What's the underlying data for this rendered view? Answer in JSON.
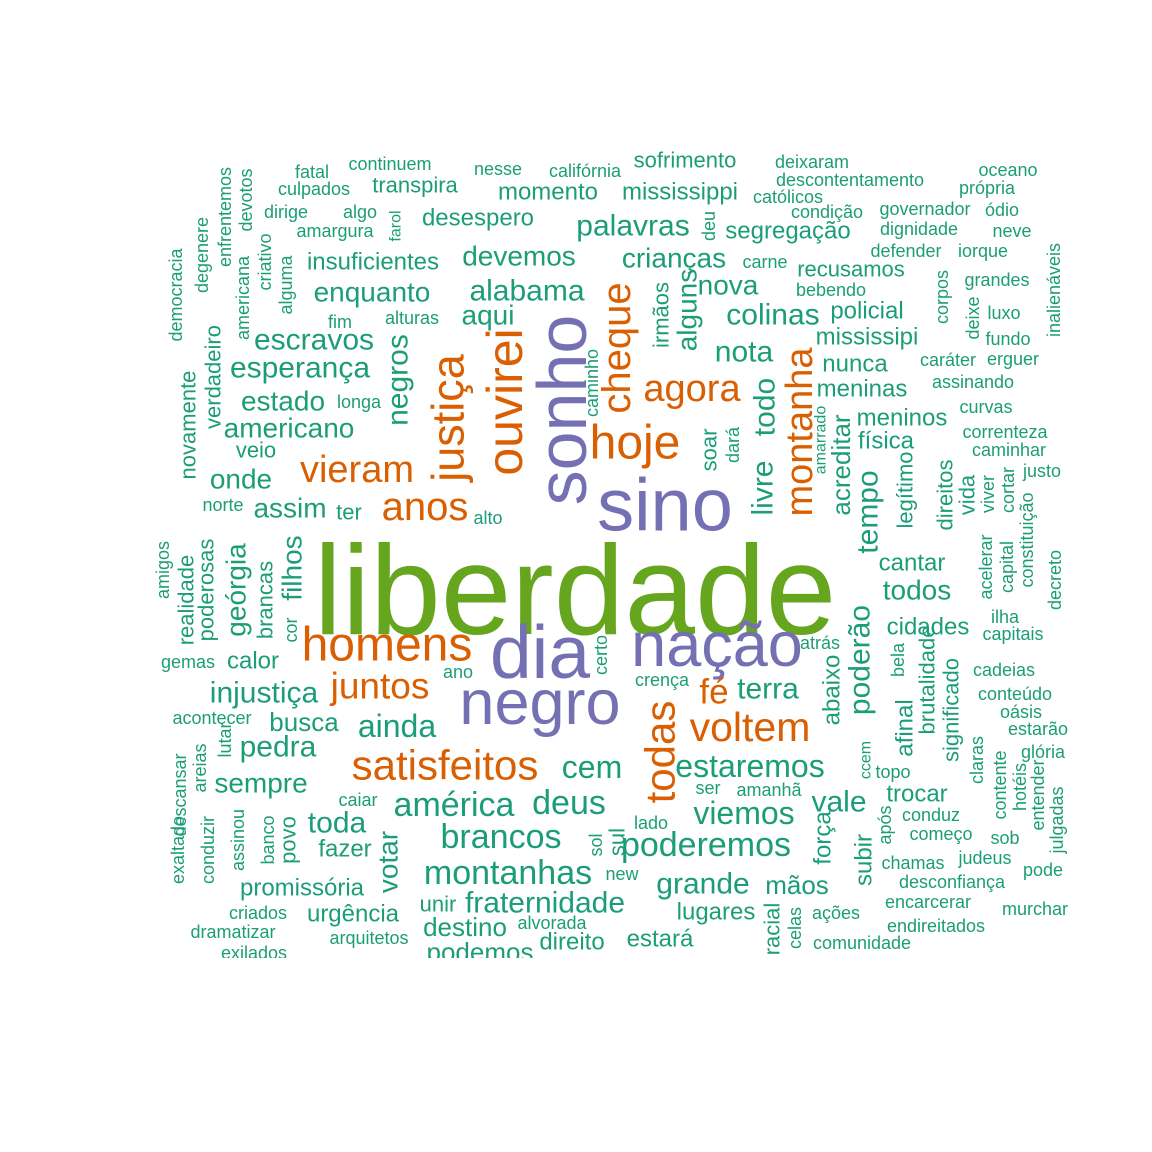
{
  "chart_data": {
    "type": "wordcloud",
    "groups": [
      {
        "color": "#66a61e",
        "words": [
          "liberdade"
        ]
      },
      {
        "color": "#7570b3",
        "words": [
          "sonho",
          "sino",
          "dia",
          "nação",
          "negro"
        ]
      },
      {
        "color": "#d95f02",
        "words": [
          "justiça",
          "ouvirei",
          "cheque",
          "hoje",
          "agora",
          "montanha",
          "vieram",
          "anos",
          "homens",
          "juntos",
          "fé",
          "voltem",
          "satisfeitos",
          "todas"
        ]
      },
      {
        "color": "#1b9e77",
        "words": [
          "fatal",
          "continuem",
          "nesse",
          "califórnia",
          "sofrimento",
          "deixaram",
          "oceano",
          "culpados",
          "transpira",
          "momento",
          "mississippi",
          "descontentamento",
          "própria",
          "católicos",
          "dirige",
          "algo",
          "desespero",
          "condição",
          "governador",
          "ódio",
          "amargura",
          "farol",
          "palavras",
          "deu",
          "segregação",
          "dignidade",
          "neve",
          "enfrentemos",
          "devotos",
          "insuficientes",
          "devemos",
          "crianças",
          "carne",
          "defender",
          "iorque",
          "democracia",
          "degenere",
          "americana",
          "criativo",
          "alguma",
          "recusamos",
          "grandes",
          "enquanto",
          "alabama",
          "nova",
          "bebendo",
          "corpos",
          "inalienáveis",
          "aqui",
          "alguns",
          "irmãos",
          "colinas",
          "policial",
          "deixe",
          "luxo",
          "fim",
          "alturas",
          "escravos",
          "mississipi",
          "fundo",
          "esperança",
          "negros",
          "caminho",
          "nota",
          "verdadeiro",
          "nunca",
          "caráter",
          "erguer",
          "novamente",
          "estado",
          "longa",
          "livre",
          "todo",
          "meninas",
          "assinando",
          "americano",
          "curvas",
          "meninos",
          "amarrado",
          "acreditar",
          "correnteza",
          "veio",
          "física",
          "soar",
          "dará",
          "caminhar",
          "onde",
          "legítimo",
          "justo",
          "direitos",
          "vida",
          "viver",
          "cortar",
          "tempo",
          "norte",
          "assim",
          "ter",
          "alto",
          "acelerar",
          "capital",
          "constituição",
          "amigos",
          "realidade",
          "poderosas",
          "geórgia",
          "brancas",
          "filhos",
          "cantar",
          "todos",
          "decreto",
          "cor",
          "cidades",
          "ilha",
          "capitais",
          "certo",
          "atrás",
          "gemas",
          "calor",
          "poderão",
          "bela",
          "cadeias",
          "ano",
          "crença",
          "brutalidade",
          "injustiça",
          "terra",
          "conteúdo",
          "significado",
          "abaixo",
          "oásis",
          "acontecer",
          "busca",
          "ainda",
          "afinal",
          "estarão",
          "lutar",
          "areias",
          "descansar",
          "pedra",
          "cem",
          "estaremos",
          "claras",
          "glória",
          "ccem",
          "topo",
          "contente",
          "sempre",
          "hotéis",
          "ser",
          "amanhã",
          "trocar",
          "américa",
          "deus",
          "viemos",
          "vale",
          "caiar",
          "entender",
          "julgadas",
          "conduz",
          "após",
          "toda",
          "lado",
          "força",
          "brancos",
          "começo",
          "sob",
          "assinou",
          "banco",
          "povo",
          "exaltado",
          "conduzir",
          "fazer",
          "votar",
          "sol",
          "sul",
          "poderemos",
          "subir",
          "judeus",
          "chamas",
          "montanhas",
          "pode",
          "new",
          "desconfiança",
          "promissória",
          "grande",
          "mãos",
          "unir",
          "fraternidade",
          "lugares",
          "racial",
          "celas",
          "ações",
          "encarcerar",
          "murchar",
          "criados",
          "urgência",
          "alvorada",
          "endireitados",
          "dramatizar",
          "destino",
          "arquitetos",
          "direito",
          "estará",
          "comunidade",
          "exilados",
          "podemos"
        ]
      }
    ]
  }
}
